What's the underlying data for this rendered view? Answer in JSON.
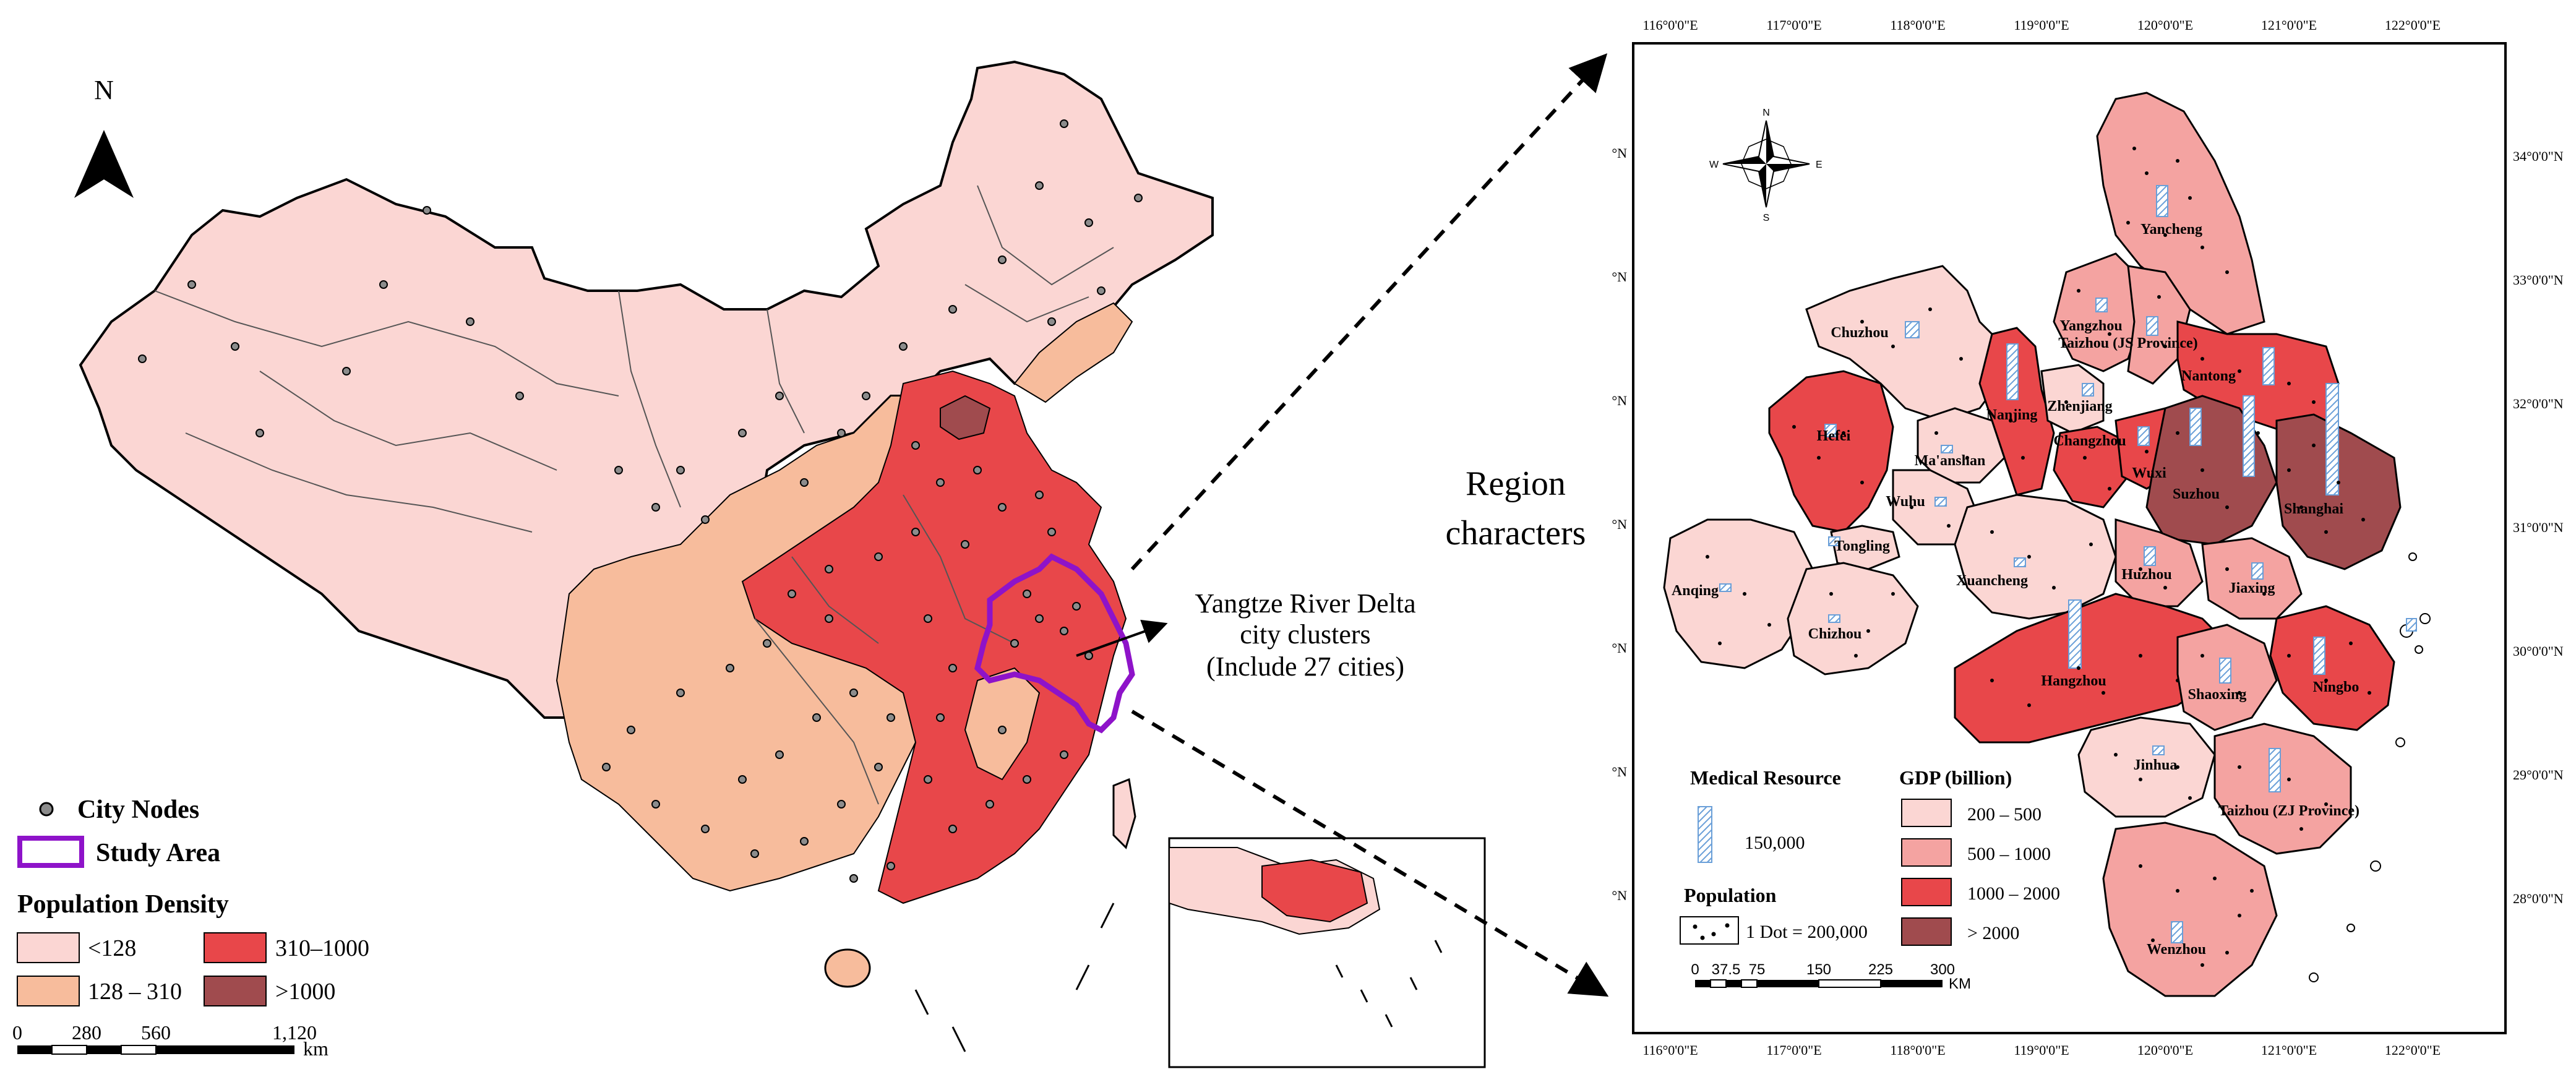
{
  "left_map": {
    "north_label": "N",
    "annotation": {
      "line1": "Yangtze River Delta",
      "line2": "city clusters",
      "line3": "(Include 27 cities)"
    },
    "legend": {
      "city_nodes": "City Nodes",
      "study_area": "Study Area",
      "density_title": "Population Density",
      "classes": [
        {
          "label": "<128",
          "color": "#fbd6d3"
        },
        {
          "label": "128 – 310",
          "color": "#f7bc9c"
        },
        {
          "label": "310–1000",
          "color": "#e8474a"
        },
        {
          "label": ">1000",
          "color": "#a04b4e"
        }
      ]
    },
    "scale": {
      "ticks": [
        "0",
        "280",
        "560",
        "1,120"
      ],
      "unit": "km"
    },
    "colors": {
      "study_area": "#8e13c9",
      "city_node": "#8c8c8c"
    }
  },
  "middle": {
    "line1": "Region",
    "line2": "characters"
  },
  "right_map": {
    "lon_ticks": [
      "116°0'0\"E",
      "117°0'0\"E",
      "118°0'0\"E",
      "119°0'0\"E",
      "120°0'0\"E",
      "121°0'0\"E",
      "122°0'0\"E"
    ],
    "lat_ticks": [
      "34°0'0\"N",
      "33°0'0\"N",
      "32°0'0\"N",
      "31°0'0\"N",
      "30°0'0\"N",
      "29°0'0\"N",
      "28°0'0\"N"
    ],
    "lat_left": "°N",
    "compass": {
      "n": "N",
      "s": "S",
      "e": "E",
      "w": "W"
    },
    "cities": [
      {
        "name": "Yancheng"
      },
      {
        "name": "Chuzhou"
      },
      {
        "name": "Yangzhou"
      },
      {
        "name": "Taizhou (JS Province)"
      },
      {
        "name": "Nantong"
      },
      {
        "name": "Hefei"
      },
      {
        "name": "Nanjing"
      },
      {
        "name": "Zhenjiang"
      },
      {
        "name": "Changzhou"
      },
      {
        "name": "Wuxi"
      },
      {
        "name": "Ma'anshan"
      },
      {
        "name": "Suzhou"
      },
      {
        "name": "Shanghai"
      },
      {
        "name": "Wuhu"
      },
      {
        "name": "Tongling"
      },
      {
        "name": "Xuancheng"
      },
      {
        "name": "Huzhou"
      },
      {
        "name": "Jiaxing"
      },
      {
        "name": "Anqing"
      },
      {
        "name": "Chizhou"
      },
      {
        "name": "Hangzhou"
      },
      {
        "name": "Shaoxing"
      },
      {
        "name": "Ningbo"
      },
      {
        "name": "Jinhua"
      },
      {
        "name": "Taizhou (ZJ Province)"
      },
      {
        "name": "Wenzhou"
      }
    ],
    "legend": {
      "medical_title": "Medical Resource",
      "medical_value": "150,000",
      "population_title": "Population",
      "population_value": "1 Dot = 200,000",
      "gdp_title": "GDP (billion)",
      "gdp_classes": [
        {
          "label": "200 – 500",
          "color": "#fbd6d3"
        },
        {
          "label": "500 – 1000",
          "color": "#f4a3a1"
        },
        {
          "label": "1000 – 2000",
          "color": "#e8474a"
        },
        {
          "label": "> 2000",
          "color": "#a04b4e"
        }
      ]
    },
    "scale": {
      "ticks": [
        "0",
        "37.5",
        "75",
        "150",
        "225",
        "300"
      ],
      "unit": "KM"
    }
  }
}
